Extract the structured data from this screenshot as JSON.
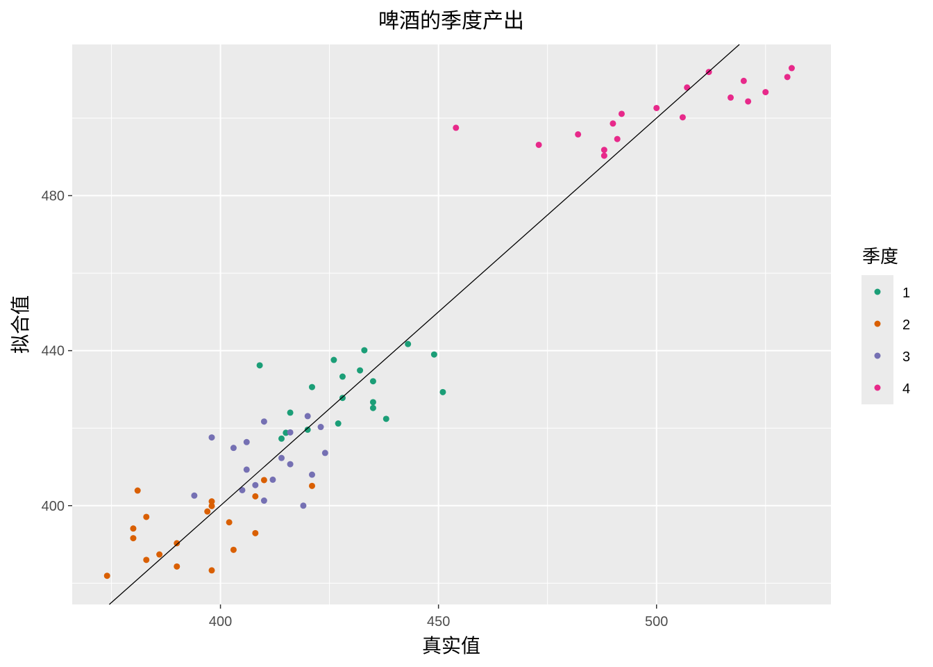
{
  "chart_data": {
    "type": "scatter",
    "title": "啤酒的季度产出",
    "xlabel": "真实值",
    "ylabel": "拟合值",
    "xlim": [
      366,
      540
    ],
    "ylim": [
      374.5,
      519
    ],
    "xticks": [
      400,
      450,
      500
    ],
    "yticks": [
      400,
      440,
      480
    ],
    "grid": true,
    "legend": {
      "title": "季度",
      "placement": "right",
      "entries": [
        "1",
        "2",
        "3",
        "4"
      ]
    },
    "colors": {
      "1": "#1b9e77",
      "2": "#d95f02",
      "3": "#7570b3",
      "4": "#e7298a"
    },
    "panel_background": "#ebebeb",
    "reference_line": {
      "type": "identity",
      "slope": 1,
      "intercept": 0,
      "color": "#000000"
    },
    "series": [
      {
        "name": "1",
        "points": [
          [
            409,
            436.2
          ],
          [
            416,
            424.0
          ],
          [
            415,
            418.8
          ],
          [
            414,
            417.3
          ],
          [
            420,
            419.6
          ],
          [
            421,
            430.6
          ],
          [
            426,
            437.6
          ],
          [
            427,
            421.2
          ],
          [
            428,
            433.3
          ],
          [
            428,
            427.8
          ],
          [
            432,
            434.9
          ],
          [
            433,
            440.1
          ],
          [
            435,
            432.1
          ],
          [
            435,
            426.7
          ],
          [
            435,
            425.2
          ],
          [
            438,
            422.4
          ],
          [
            443,
            441.7
          ],
          [
            449,
            439.0
          ],
          [
            451,
            429.3
          ]
        ]
      },
      {
        "name": "2",
        "points": [
          [
            374,
            381.9
          ],
          [
            380,
            394.1
          ],
          [
            380,
            391.6
          ],
          [
            381,
            403.9
          ],
          [
            383,
            397.1
          ],
          [
            383,
            386.0
          ],
          [
            386,
            387.4
          ],
          [
            390,
            390.3
          ],
          [
            390,
            384.3
          ],
          [
            397,
            398.5
          ],
          [
            398,
            399.9
          ],
          [
            398,
            401.1
          ],
          [
            398,
            383.3
          ],
          [
            402,
            395.7
          ],
          [
            403,
            388.6
          ],
          [
            408,
            402.4
          ],
          [
            408,
            392.9
          ],
          [
            410,
            406.6
          ],
          [
            421,
            405.1
          ]
        ]
      },
      {
        "name": "3",
        "points": [
          [
            394,
            402.6
          ],
          [
            398,
            417.6
          ],
          [
            403,
            414.9
          ],
          [
            405,
            404.0
          ],
          [
            406,
            416.4
          ],
          [
            406,
            409.3
          ],
          [
            408,
            405.3
          ],
          [
            410,
            421.7
          ],
          [
            410,
            401.3
          ],
          [
            412,
            406.7
          ],
          [
            414,
            412.3
          ],
          [
            416,
            418.9
          ],
          [
            416,
            410.7
          ],
          [
            419,
            400.0
          ],
          [
            420,
            423.1
          ],
          [
            421,
            408.0
          ],
          [
            423,
            420.3
          ],
          [
            424,
            413.6
          ]
        ]
      },
      {
        "name": "4",
        "points": [
          [
            454,
            497.5
          ],
          [
            473,
            493.1
          ],
          [
            482,
            495.8
          ],
          [
            488,
            491.8
          ],
          [
            488,
            490.3
          ],
          [
            490,
            498.6
          ],
          [
            491,
            494.6
          ],
          [
            492,
            501.1
          ],
          [
            500,
            502.6
          ],
          [
            506,
            500.2
          ],
          [
            507,
            507.9
          ],
          [
            512,
            511.9
          ],
          [
            517,
            505.3
          ],
          [
            520,
            509.6
          ],
          [
            521,
            504.3
          ],
          [
            525,
            506.7
          ],
          [
            530,
            510.6
          ],
          [
            531,
            512.9
          ]
        ]
      }
    ]
  }
}
